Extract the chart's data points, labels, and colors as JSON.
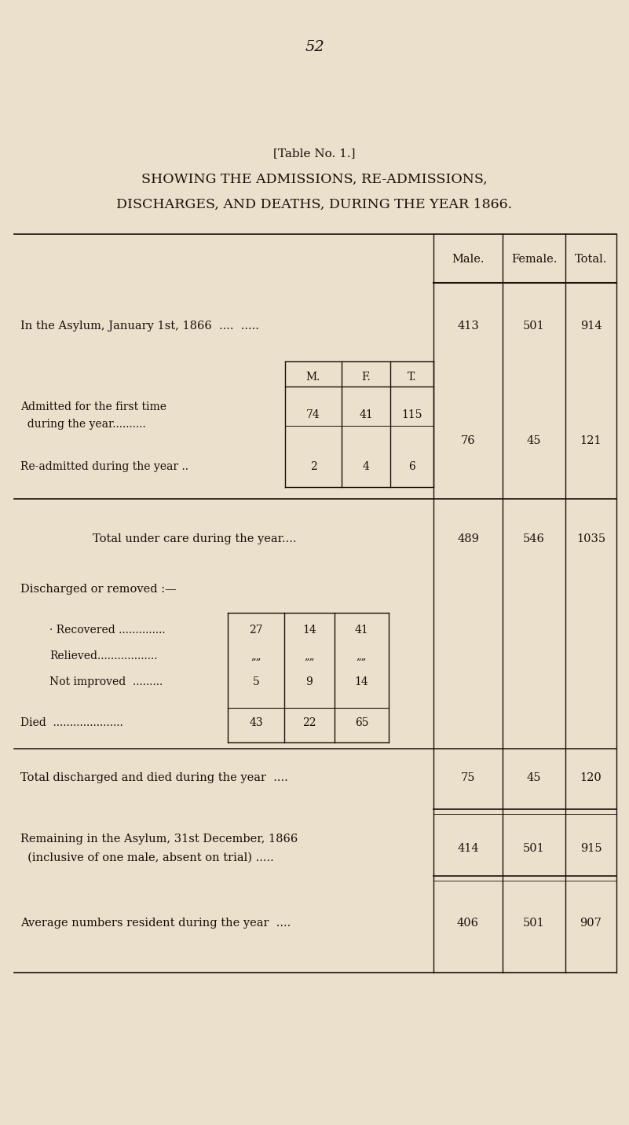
{
  "page_number": "52",
  "title1": "[Table No. 1.]",
  "title2": "SHOWING THE ADMISSIONS, RE-ADMISSIONS,",
  "title3": "DISCHARGES, AND DEATHS, DURING THE YEAR 1866.",
  "bg_color": "#EAE0CC",
  "text_color": "#1a1008",
  "figw": 8.01,
  "figh": 14.32,
  "dpi": 100
}
